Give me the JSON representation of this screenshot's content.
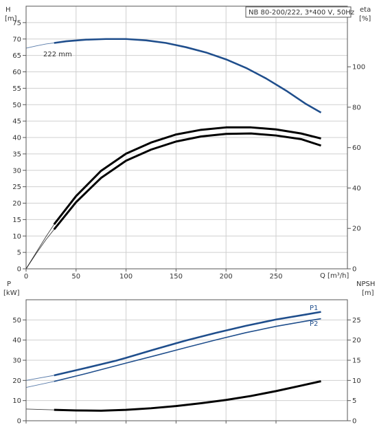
{
  "chart_data": [
    {
      "type": "line",
      "panel": "top",
      "title": "NB 80-200/222, 3*400 V, 50Hz",
      "xlabel": "Q [m³/h]",
      "ylabel_left": [
        "H",
        "[m]"
      ],
      "ylabel_right": [
        "eta",
        "[%]"
      ],
      "xlim": [
        0,
        300
      ],
      "xticks": [
        0,
        50,
        100,
        150,
        200,
        250
      ],
      "ylim_left": [
        0,
        80
      ],
      "yticks_left": [
        0,
        5,
        10,
        15,
        20,
        25,
        30,
        35,
        40,
        45,
        50,
        55,
        60,
        65,
        70,
        75
      ],
      "ylim_right": [
        0,
        130
      ],
      "yticks_right": [
        0,
        20,
        40,
        60,
        80,
        100
      ],
      "grid": true,
      "series": [
        {
          "name": "222 mm",
          "axis": "left",
          "color": "#1f4e8c",
          "extrapolated_x": [
            0,
            10,
            20,
            28
          ],
          "extrapolated_y": [
            67.2,
            67.9,
            68.5,
            68.8
          ],
          "x": [
            28,
            40,
            60,
            80,
            100,
            120,
            140,
            160,
            180,
            200,
            220,
            240,
            260,
            280,
            295
          ],
          "y": [
            68.8,
            69.3,
            69.8,
            70.0,
            70.0,
            69.6,
            68.8,
            67.5,
            65.9,
            63.8,
            61.2,
            58.0,
            54.3,
            50.2,
            47.6
          ]
        },
        {
          "name": "",
          "axis": "right",
          "color": "#000000",
          "extrapolated_x": [
            0,
            10,
            20,
            28
          ],
          "extrapolated_y": [
            0,
            7.5,
            14.5,
            19.5
          ],
          "x": [
            28,
            50,
            75,
            100,
            125,
            150,
            175,
            200,
            225,
            250,
            275,
            295
          ],
          "y": [
            19.5,
            33,
            45,
            53.5,
            59,
            63,
            65.5,
            66.8,
            67,
            66,
            64.2,
            61
          ]
        },
        {
          "name": "",
          "axis": "right",
          "color": "#000000",
          "extrapolated_x": [
            0,
            10,
            20,
            28
          ],
          "extrapolated_y": [
            0,
            8,
            16,
            22
          ],
          "x": [
            28,
            50,
            75,
            100,
            125,
            150,
            175,
            200,
            225,
            250,
            275,
            295
          ],
          "y": [
            22,
            36,
            48.5,
            57,
            62.5,
            66.5,
            68.8,
            70,
            70,
            69,
            67,
            64.5
          ]
        }
      ]
    },
    {
      "type": "line",
      "panel": "bottom",
      "title": "",
      "xlabel": "",
      "ylabel_left": [
        "P",
        "[kW]"
      ],
      "ylabel_right": [
        "NPSH",
        "[m]"
      ],
      "xlim": [
        0,
        300
      ],
      "ylim_left": [
        0,
        60
      ],
      "yticks_left": [
        0,
        10,
        20,
        30,
        40,
        50
      ],
      "ylim_right": [
        0,
        30
      ],
      "yticks_right": [
        0,
        5,
        10,
        15,
        20,
        25
      ],
      "grid": true,
      "series": [
        {
          "name": "P1",
          "axis": "left",
          "color": "#1f4e8c",
          "extrapolated_x": [
            0,
            28
          ],
          "extrapolated_y": [
            20,
            22.5
          ],
          "x": [
            28,
            60,
            90,
            100,
            130,
            160,
            190,
            220,
            250,
            280,
            295
          ],
          "y": [
            22.5,
            26.2,
            29.8,
            31.2,
            35.6,
            39.8,
            43.6,
            47.1,
            50.2,
            52.7,
            54
          ]
        },
        {
          "name": "P2",
          "axis": "left",
          "color": "#1f4e8c",
          "extrapolated_x": [
            0,
            28
          ],
          "extrapolated_y": [
            16.5,
            19.5
          ],
          "x": [
            28,
            60,
            100,
            130,
            160,
            190,
            220,
            250,
            280,
            295
          ],
          "y": [
            19.5,
            23.4,
            28.6,
            32.4,
            36.3,
            40.1,
            43.7,
            46.8,
            49.4,
            50.6
          ]
        },
        {
          "name": "",
          "axis": "right",
          "color": "#000000",
          "extrapolated_x": [
            0,
            28
          ],
          "extrapolated_y": [
            2.9,
            2.7
          ],
          "x": [
            28,
            50,
            75,
            100,
            125,
            150,
            175,
            200,
            225,
            250,
            275,
            295
          ],
          "y": [
            2.7,
            2.55,
            2.5,
            2.7,
            3.1,
            3.65,
            4.35,
            5.15,
            6.15,
            7.35,
            8.7,
            9.8
          ]
        }
      ]
    }
  ]
}
